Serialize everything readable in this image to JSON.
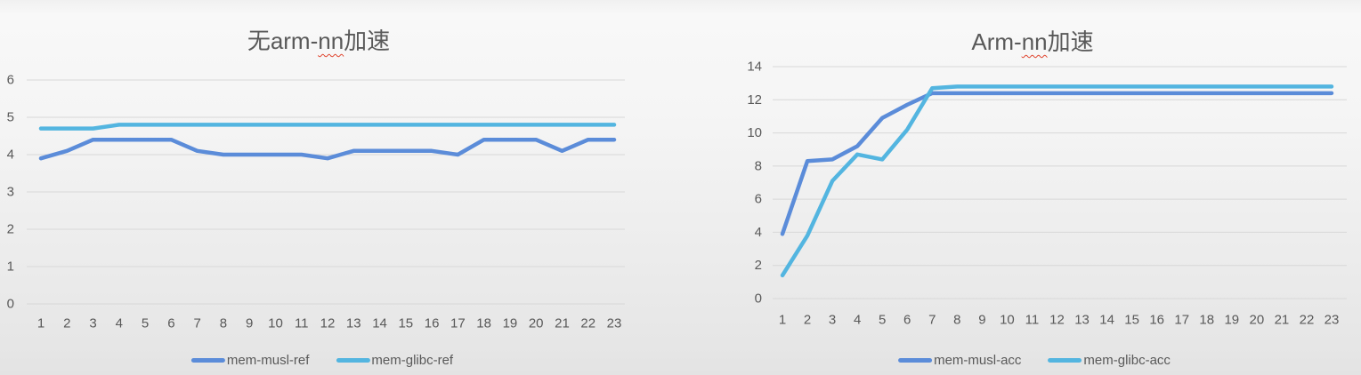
{
  "background": {
    "top_color": "#f0f0f0",
    "bottom_color": "#e3e3e3"
  },
  "colors": {
    "series_dark_blue": "#5B8CD9",
    "series_light_blue": "#53B5E0",
    "gridline": "#D8D8D8",
    "axis_label": "#595959",
    "title": "#595959",
    "spellcheck_underline": "#e0442e"
  },
  "chart_data": [
    {
      "type": "line",
      "title": "无arm-nn加速",
      "title_parts": [
        {
          "text": "无arm-",
          "misspelled": false
        },
        {
          "text": "nn",
          "misspelled": true
        },
        {
          "text": "加速",
          "misspelled": false
        }
      ],
      "categories": [
        1,
        2,
        3,
        4,
        5,
        6,
        7,
        8,
        9,
        10,
        11,
        12,
        13,
        14,
        15,
        16,
        17,
        18,
        19,
        20,
        21,
        22,
        23
      ],
      "series": [
        {
          "name": "mem-musl-ref",
          "color": "#5B8CD9",
          "values": [
            3.9,
            4.1,
            4.4,
            4.4,
            4.4,
            4.4,
            4.1,
            4.0,
            4.0,
            4.0,
            4.0,
            3.9,
            4.1,
            4.1,
            4.1,
            4.1,
            4.0,
            4.4,
            4.4,
            4.4,
            4.1,
            4.4,
            4.4
          ]
        },
        {
          "name": "mem-glibc-ref",
          "color": "#53B5E0",
          "values": [
            4.7,
            4.7,
            4.7,
            4.8,
            4.8,
            4.8,
            4.8,
            4.8,
            4.8,
            4.8,
            4.8,
            4.8,
            4.8,
            4.8,
            4.8,
            4.8,
            4.8,
            4.8,
            4.8,
            4.8,
            4.8,
            4.8,
            4.8
          ]
        }
      ],
      "ylim": [
        0,
        6
      ],
      "y_tick_step": 1,
      "y_tick_labels": [
        "0",
        "1",
        "2",
        "3",
        "4",
        "5",
        "6"
      ],
      "xlabel": "",
      "ylabel": "",
      "grid": true,
      "legend_position": "bottom",
      "legend_entries": [
        "mem-musl-ref",
        "mem-glibc-ref"
      ]
    },
    {
      "type": "line",
      "title": "Arm-nn加速",
      "title_parts": [
        {
          "text": "Arm-",
          "misspelled": false
        },
        {
          "text": "nn",
          "misspelled": true
        },
        {
          "text": "加速",
          "misspelled": false
        }
      ],
      "categories": [
        1,
        2,
        3,
        4,
        5,
        6,
        7,
        8,
        9,
        10,
        11,
        12,
        13,
        14,
        15,
        16,
        17,
        18,
        19,
        20,
        21,
        22,
        23
      ],
      "series": [
        {
          "name": "mem-musl-acc",
          "color": "#5B8CD9",
          "values": [
            3.9,
            8.3,
            8.4,
            9.2,
            10.9,
            11.7,
            12.4,
            12.4,
            12.4,
            12.4,
            12.4,
            12.4,
            12.4,
            12.4,
            12.4,
            12.4,
            12.4,
            12.4,
            12.4,
            12.4,
            12.4,
            12.4,
            12.4
          ]
        },
        {
          "name": "mem-glibc-acc",
          "color": "#53B5E0",
          "values": [
            1.4,
            3.8,
            7.1,
            8.7,
            8.4,
            10.2,
            12.7,
            12.8,
            12.8,
            12.8,
            12.8,
            12.8,
            12.8,
            12.8,
            12.8,
            12.8,
            12.8,
            12.8,
            12.8,
            12.8,
            12.8,
            12.8,
            12.8
          ]
        }
      ],
      "ylim": [
        0,
        14
      ],
      "y_tick_step": 2,
      "y_tick_labels": [
        "0",
        "2",
        "4",
        "6",
        "8",
        "10",
        "12",
        "14"
      ],
      "xlabel": "",
      "ylabel": "",
      "grid": true,
      "legend_position": "bottom",
      "legend_entries": [
        "mem-musl-acc",
        "mem-glibc-acc"
      ]
    }
  ]
}
